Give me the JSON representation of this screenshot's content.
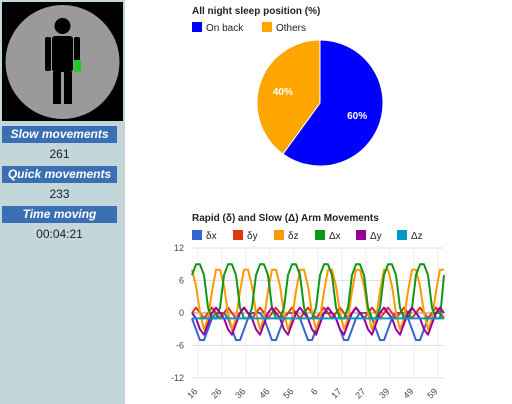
{
  "sidebar": {
    "slow_movements": {
      "label": "Slow movements",
      "value": "261"
    },
    "quick_movements": {
      "label": "Quick movements",
      "value": "233"
    },
    "time_moving": {
      "label": "Time moving",
      "value": "00:04:21"
    },
    "figure": {
      "icon": "person-figure-icon",
      "indicator_color": "#22cc22"
    }
  },
  "chart_data": [
    {
      "type": "pie",
      "title": "All night sleep position (%)",
      "labels": [
        "On back",
        "Others"
      ],
      "values": [
        60,
        40
      ],
      "value_labels": [
        "60%",
        "40%"
      ],
      "colors": [
        "#0000ff",
        "#ffa500"
      ],
      "legend": "top"
    },
    {
      "type": "line",
      "title": "Rapid (δ) and Slow (Δ) Arm Movements",
      "legend": "top",
      "x_tick_labels": [
        "16",
        "26",
        "36",
        "46",
        "56",
        "6",
        "17",
        "27",
        "39",
        "49",
        "59"
      ],
      "y_ticks": [
        12,
        6,
        0,
        -6,
        -12
      ],
      "y_tick_labels": [
        "12",
        "6",
        "0",
        "-6",
        "-12"
      ],
      "ylim": [
        -12,
        12
      ],
      "grid": true,
      "period_labels": [
        "16",
        "26",
        "36",
        "46",
        "56",
        "6",
        "17",
        "27",
        "39",
        "49",
        "59"
      ],
      "series": [
        {
          "name": "δx",
          "color": "#3366cc",
          "values": [
            -1,
            -3,
            -5,
            -5,
            -3,
            -1,
            0,
            0,
            0,
            -1,
            -3,
            -5,
            -5,
            -3,
            -1,
            0,
            0,
            0,
            -1,
            -3,
            -5,
            -5,
            -3,
            -1,
            0,
            0,
            0,
            -1,
            -3,
            -5,
            -5,
            -3,
            -1,
            0,
            0,
            0,
            -1,
            -3,
            -5,
            -5,
            -3,
            -1,
            0,
            0,
            0,
            -1,
            -3,
            -5,
            -5,
            -3,
            -1,
            0,
            0,
            0,
            -1,
            -3,
            -5,
            -5,
            -3,
            -1,
            0,
            0,
            0,
            -1
          ]
        },
        {
          "name": "δy",
          "color": "#dc3912",
          "values": [
            0,
            1,
            0,
            -1,
            0,
            1,
            0,
            -1,
            0,
            1,
            0,
            -1,
            0,
            1,
            0,
            -1,
            0,
            1,
            0,
            -1,
            0,
            1,
            0,
            -1,
            0,
            1,
            0,
            -1,
            0,
            1,
            0,
            -1,
            0,
            1,
            0,
            -1,
            0,
            1,
            0,
            -1,
            0,
            1,
            0,
            -1,
            0,
            1,
            0,
            -1,
            0,
            1,
            0,
            -1,
            0,
            1,
            0,
            -1,
            0,
            1,
            0,
            -1,
            0,
            1,
            0,
            -1
          ]
        },
        {
          "name": "δz",
          "color": "#ff9900",
          "values": [
            8,
            5,
            0,
            -3,
            -1,
            4,
            8,
            8,
            5,
            0,
            -3,
            -1,
            4,
            8,
            8,
            5,
            0,
            -3,
            -1,
            4,
            8,
            8,
            5,
            0,
            -3,
            -1,
            4,
            8,
            8,
            5,
            0,
            -3,
            -1,
            4,
            8,
            8,
            5,
            0,
            -3,
            -1,
            4,
            8,
            8,
            5,
            0,
            -3,
            -1,
            4,
            8,
            8,
            5,
            0,
            -3,
            -1,
            4,
            8,
            8,
            5,
            0,
            -3,
            -1,
            4,
            8,
            8
          ]
        },
        {
          "name": "Δx",
          "color": "#109618",
          "values": [
            7,
            9,
            9,
            7,
            1,
            -1,
            -1,
            1,
            7,
            9,
            9,
            7,
            1,
            -1,
            -1,
            1,
            7,
            9,
            9,
            7,
            1,
            -1,
            -1,
            1,
            7,
            9,
            9,
            7,
            1,
            -1,
            -1,
            1,
            7,
            9,
            9,
            7,
            1,
            -1,
            -1,
            1,
            7,
            9,
            9,
            7,
            1,
            -1,
            -1,
            1,
            7,
            9,
            9,
            7,
            1,
            -1,
            -1,
            1,
            7,
            9,
            9,
            7,
            1,
            -1,
            -1,
            7
          ]
        },
        {
          "name": "Δy",
          "color": "#990099",
          "values": [
            0,
            -1,
            -3,
            -4,
            -2,
            0,
            1,
            0,
            -1,
            -3,
            -4,
            -2,
            0,
            1,
            0,
            -1,
            -3,
            -4,
            -2,
            0,
            1,
            0,
            -1,
            -3,
            -4,
            -2,
            0,
            1,
            0,
            -1,
            -3,
            -4,
            -2,
            0,
            1,
            0,
            -1,
            -3,
            -4,
            -2,
            0,
            1,
            0,
            -1,
            -3,
            -4,
            -2,
            0,
            1,
            0,
            -1,
            -3,
            -4,
            -2,
            0,
            1,
            0,
            -1,
            -3,
            -4,
            -2,
            0,
            1,
            0
          ]
        },
        {
          "name": "Δz",
          "color": "#0099c6",
          "values": [
            -1,
            -1,
            -1,
            -1,
            -1,
            -1,
            -1,
            -1,
            -1,
            -1,
            -1,
            -1,
            -1,
            -1,
            -1,
            -1,
            -1,
            -1,
            -1,
            -1,
            -1,
            -1,
            -1,
            -1,
            -1,
            -1,
            -1,
            -1,
            -1,
            -1,
            -1,
            -1,
            -1,
            -1,
            -1,
            -1,
            -1,
            -1,
            -1,
            -1,
            -1,
            -1,
            -1,
            -1,
            -1,
            -1,
            -1,
            -1,
            -1,
            -1,
            -1,
            -1,
            -1,
            -1,
            -1,
            -1,
            -1,
            -1,
            -1,
            -1,
            -1,
            -1,
            -1,
            -1
          ]
        }
      ]
    }
  ]
}
